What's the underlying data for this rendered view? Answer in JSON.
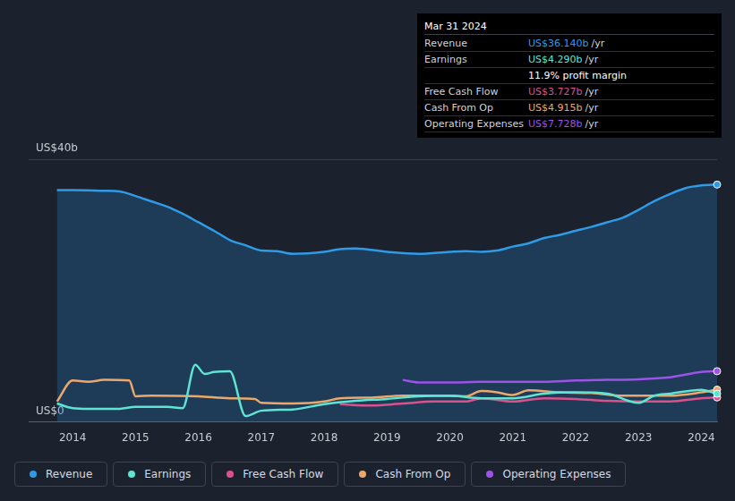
{
  "chart_data": {
    "type": "line",
    "xlim": [
      2013.3,
      2024.25
    ],
    "xticks": [
      2014,
      2015,
      2016,
      2017,
      2018,
      2019,
      2020,
      2021,
      2022,
      2023,
      2024
    ],
    "ylim": [
      0,
      40
    ],
    "yticks": [
      {
        "value": 0,
        "label": "US$0"
      },
      {
        "value": 40,
        "label": "US$40b"
      }
    ],
    "grid": true,
    "legend": "bottom",
    "series": [
      {
        "name": "Revenue",
        "type": "area",
        "color": "#2f9be6",
        "x": [
          2013.75,
          2014.0,
          2014.5,
          2014.75,
          2015.0,
          2015.25,
          2015.5,
          2015.75,
          2016.0,
          2016.25,
          2016.5,
          2016.75,
          2017.0,
          2017.25,
          2017.5,
          2018.0,
          2018.25,
          2018.5,
          2019.0,
          2019.5,
          2020.0,
          2020.25,
          2020.5,
          2020.75,
          2021.0,
          2021.25,
          2021.5,
          2021.75,
          2022.0,
          2022.25,
          2022.5,
          2022.75,
          2023.0,
          2023.25,
          2023.5,
          2023.75,
          2024.0,
          2024.25
        ],
        "values": [
          35.3,
          35.3,
          35.2,
          35.1,
          34.4,
          33.6,
          32.8,
          31.7,
          30.4,
          29.1,
          27.7,
          26.9,
          26.1,
          26.0,
          25.6,
          25.9,
          26.3,
          26.4,
          25.9,
          25.6,
          25.9,
          26.0,
          25.9,
          26.1,
          26.7,
          27.2,
          28.0,
          28.5,
          29.1,
          29.7,
          30.4,
          31.1,
          32.3,
          33.6,
          34.7,
          35.6,
          36.0,
          36.14
        ]
      },
      {
        "name": "Earnings",
        "type": "line",
        "color": "#5fe3d2",
        "x": [
          2013.75,
          2014.0,
          2014.25,
          2014.75,
          2015.0,
          2015.5,
          2015.75,
          2015.95,
          2016.1,
          2016.25,
          2016.5,
          2016.75,
          2017.0,
          2017.5,
          2018.0,
          2018.5,
          2019.0,
          2019.5,
          2020.0,
          2020.5,
          2021.0,
          2021.5,
          2022.0,
          2022.5,
          2023.0,
          2023.25,
          2023.5,
          2024.0,
          2024.25
        ],
        "values": [
          2.8,
          2.1,
          2.0,
          2.0,
          2.3,
          2.3,
          2.1,
          8.7,
          7.3,
          7.6,
          7.7,
          0.9,
          1.7,
          1.9,
          2.7,
          3.2,
          3.5,
          3.9,
          4.0,
          3.6,
          3.6,
          4.3,
          4.5,
          4.3,
          2.9,
          4.0,
          4.3,
          4.9,
          4.29
        ]
      },
      {
        "name": "Free Cash Flow",
        "type": "line",
        "color": "#d9528c",
        "x": [
          2018.25,
          2018.75,
          2019.25,
          2019.75,
          2020.25,
          2020.5,
          2021.0,
          2021.5,
          2022.0,
          2022.5,
          2023.0,
          2023.5,
          2024.0,
          2024.25
        ],
        "values": [
          2.7,
          2.5,
          2.8,
          3.1,
          3.1,
          3.6,
          3.1,
          3.6,
          3.5,
          3.2,
          3.1,
          3.1,
          3.6,
          3.727
        ]
      },
      {
        "name": "Cash From Op",
        "type": "line",
        "color": "#eba86a",
        "x": [
          2013.75,
          2014.0,
          2014.25,
          2014.5,
          2014.9,
          2015.0,
          2015.25,
          2016.0,
          2016.5,
          2016.9,
          2017.0,
          2017.5,
          2018.0,
          2018.25,
          2018.75,
          2019.25,
          2019.75,
          2020.25,
          2020.5,
          2020.75,
          2021.0,
          2021.25,
          2021.75,
          2022.25,
          2022.75,
          2023.0,
          2023.5,
          2024.0,
          2024.25
        ],
        "values": [
          3.1,
          6.3,
          6.1,
          6.4,
          6.3,
          3.9,
          4.0,
          3.9,
          3.6,
          3.5,
          2.9,
          2.8,
          3.1,
          3.6,
          3.7,
          4.0,
          4.0,
          3.9,
          4.7,
          4.5,
          4.1,
          4.8,
          4.5,
          4.4,
          4.0,
          4.0,
          4.0,
          4.5,
          4.915
        ]
      },
      {
        "name": "Operating Expenses",
        "type": "line",
        "color": "#9d52e8",
        "x": [
          2019.25,
          2019.5,
          2020.0,
          2020.5,
          2021.0,
          2021.5,
          2022.0,
          2022.5,
          2023.0,
          2023.5,
          2024.0,
          2024.25
        ],
        "values": [
          6.4,
          6.0,
          6.0,
          6.1,
          6.1,
          6.1,
          6.3,
          6.4,
          6.5,
          6.8,
          7.6,
          7.728
        ]
      }
    ]
  },
  "info_box": {
    "title": "Mar 31 2024",
    "rows": [
      {
        "label": "Revenue",
        "value": "US$36.140b",
        "unit": "/yr"
      },
      {
        "label": "Earnings",
        "value": "US$4.290b",
        "unit": "/yr"
      },
      {
        "value": "11.9% profit margin"
      },
      {
        "label": "Free Cash Flow",
        "value": "US$3.727b",
        "unit": "/yr"
      },
      {
        "label": "Cash From Op",
        "value": "US$4.915b",
        "unit": "/yr"
      },
      {
        "label": "Operating Expenses",
        "value": "US$7.728b",
        "unit": "/yr"
      }
    ]
  }
}
